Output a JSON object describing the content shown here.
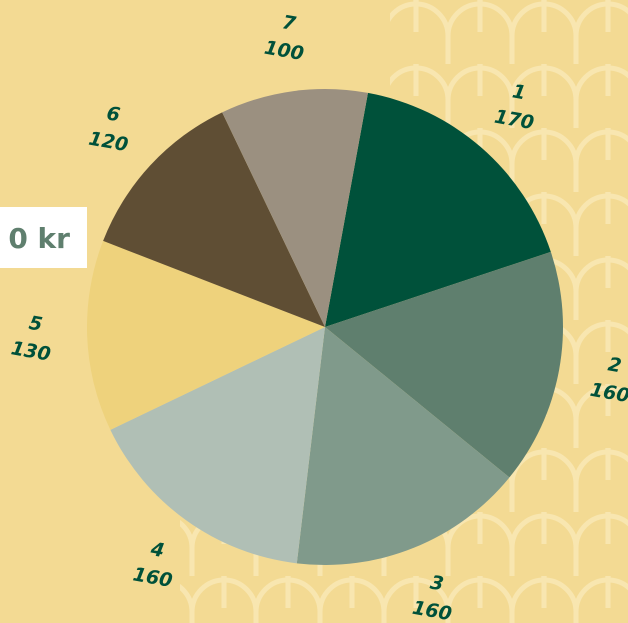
{
  "chart_data": {
    "type": "pie",
    "annotation": "0 kr",
    "categories": [
      "1",
      "2",
      "3",
      "4",
      "5",
      "6",
      "7"
    ],
    "values": [
      170,
      160,
      160,
      160,
      130,
      120,
      100
    ],
    "colors": [
      "#00513a",
      "#5f7f6e",
      "#809a8b",
      "#b0bfb5",
      "#eed27c",
      "#5f4e34",
      "#9b9080"
    ],
    "start_angle": 10.4
  }
}
